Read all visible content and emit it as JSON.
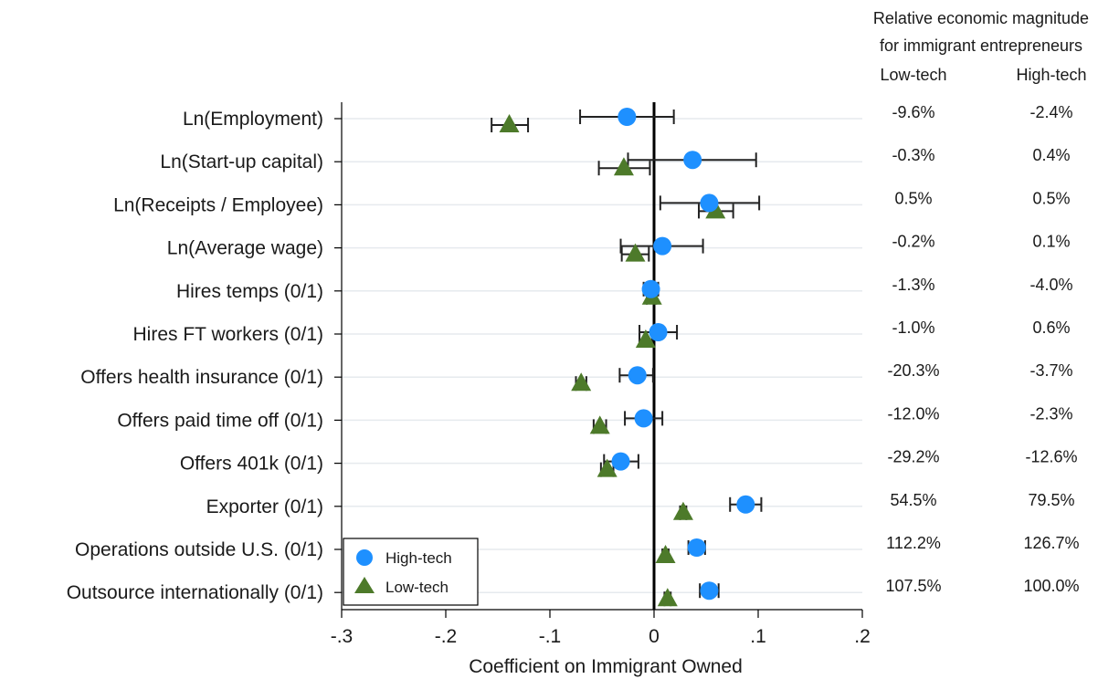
{
  "chart_data": {
    "type": "scatter",
    "xlabel": "Coefficient on Immigrant Owned",
    "xlim": [
      -0.3,
      0.2
    ],
    "x_ticks": [
      -0.3,
      -0.2,
      -0.1,
      0,
      0.1,
      0.2
    ],
    "x_tick_labels": [
      "-.3",
      "-.2",
      "-.1",
      "0",
      ".1",
      ".2"
    ],
    "grid": true,
    "reference_line_x": 0,
    "legend_position": "bottom-left",
    "categories": [
      "Ln(Employment)",
      "Ln(Start-up capital)",
      "Ln(Receipts / Employee)",
      "Ln(Average wage)",
      "Hires temps (0/1)",
      "Hires FT workers (0/1)",
      "Offers health insurance (0/1)",
      "Offers paid time off (0/1)",
      "Offers 401k (0/1)",
      "Exporter (0/1)",
      "Operations outside U.S. (0/1)",
      "Outsource internationally (0/1)"
    ],
    "series": [
      {
        "name": "High-tech",
        "marker": "circle",
        "color": "#1e90ff",
        "values": [
          -0.026,
          0.037,
          0.053,
          0.008,
          -0.003,
          0.004,
          -0.016,
          -0.01,
          -0.032,
          0.088,
          0.041,
          0.053
        ],
        "ci_low": [
          -0.071,
          -0.025,
          0.006,
          -0.032,
          -0.01,
          -0.014,
          -0.033,
          -0.028,
          -0.048,
          0.073,
          0.033,
          0.044
        ],
        "ci_high": [
          0.019,
          0.098,
          0.101,
          0.047,
          0.004,
          0.022,
          -0.001,
          0.008,
          -0.015,
          0.103,
          0.049,
          0.062
        ],
        "magnitude": [
          "-2.4%",
          "0.4%",
          "0.5%",
          "0.1%",
          "-4.0%",
          "0.6%",
          "-3.7%",
          "-2.3%",
          "-12.6%",
          "79.5%",
          "126.7%",
          "100.0%"
        ]
      },
      {
        "name": "Low-tech",
        "marker": "triangle",
        "color": "#4d7a2a",
        "values": [
          -0.139,
          -0.029,
          0.059,
          -0.018,
          -0.002,
          -0.008,
          -0.07,
          -0.052,
          -0.045,
          0.028,
          0.011,
          0.013
        ],
        "ci_low": [
          -0.156,
          -0.053,
          0.043,
          -0.031,
          -0.007,
          -0.014,
          -0.075,
          -0.058,
          -0.051,
          0.025,
          0.008,
          0.01
        ],
        "ci_high": [
          -0.121,
          -0.004,
          0.076,
          -0.005,
          0.002,
          -0.002,
          -0.065,
          -0.046,
          -0.039,
          0.031,
          0.014,
          0.016
        ],
        "magnitude": [
          "-9.6%",
          "-0.3%",
          "0.5%",
          "-0.2%",
          "-1.3%",
          "-1.0%",
          "-20.3%",
          "-12.0%",
          "-29.2%",
          "54.5%",
          "112.2%",
          "107.5%"
        ]
      }
    ],
    "magnitude_table": {
      "title_line1": "Relative economic magnitude",
      "title_line2": "for immigrant entrepreneurs",
      "col_low": "Low-tech",
      "col_high": "High-tech"
    }
  }
}
